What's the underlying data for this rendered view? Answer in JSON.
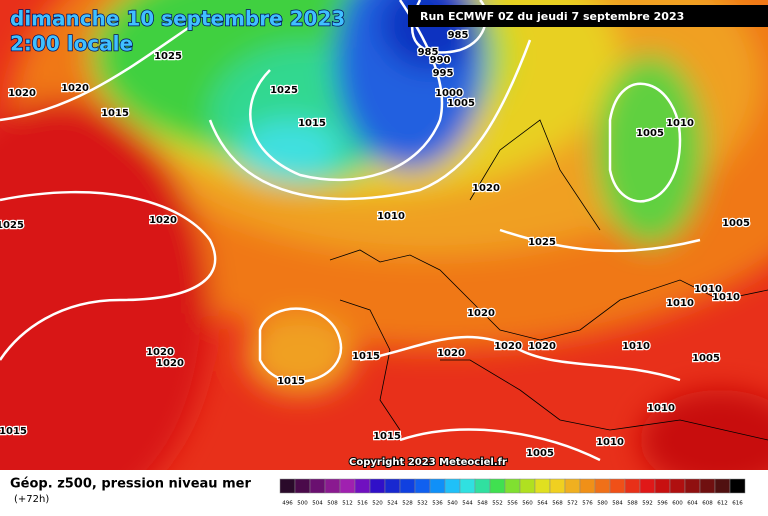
{
  "header": {
    "title": "dimanche 10 septembre 2023",
    "time": "2:00 locale",
    "run": "Run ECMWF 0Z du jeudi 7 septembre 2023"
  },
  "isobar_labels": [
    1025,
    1020,
    1020,
    1015,
    1025,
    1015,
    985,
    985,
    990,
    995,
    1000,
    1005,
    1010,
    1005,
    1020,
    1010,
    1020,
    1025,
    1025,
    1005,
    1010,
    1010,
    1010,
    1020,
    1020,
    1020,
    1010,
    1020,
    1015,
    1020,
    1020,
    1005,
    1015,
    1010,
    1015,
    1015,
    1010,
    1005
  ],
  "copyright": "Copyright 2023 Meteociel.fr",
  "legend": {
    "title": "Géop. z500, pression niveau mer",
    "lead": "(+72h)",
    "scale": [
      {
        "value": 496,
        "color": "#2a0a2a"
      },
      {
        "value": 500,
        "color": "#4a0a4a"
      },
      {
        "value": 504,
        "color": "#6a1070"
      },
      {
        "value": 508,
        "color": "#8a1a90"
      },
      {
        "value": 512,
        "color": "#a020b0"
      },
      {
        "value": 516,
        "color": "#7010c0"
      },
      {
        "value": 520,
        "color": "#3010c8"
      },
      {
        "value": 524,
        "color": "#1828d0"
      },
      {
        "value": 528,
        "color": "#1040e0"
      },
      {
        "value": 532,
        "color": "#1060f0"
      },
      {
        "value": 536,
        "color": "#1090f8"
      },
      {
        "value": 540,
        "color": "#20c0f8"
      },
      {
        "value": 544,
        "color": "#30e0e0"
      },
      {
        "value": 548,
        "color": "#30e0a0"
      },
      {
        "value": 552,
        "color": "#40e050"
      },
      {
        "value": 556,
        "color": "#80e030"
      },
      {
        "value": 560,
        "color": "#b0e020"
      },
      {
        "value": 564,
        "color": "#e0e020"
      },
      {
        "value": 568,
        "color": "#f0d020"
      },
      {
        "value": 572,
        "color": "#f0b020"
      },
      {
        "value": 576,
        "color": "#f09018"
      },
      {
        "value": 580,
        "color": "#f07018"
      },
      {
        "value": 584,
        "color": "#f05018"
      },
      {
        "value": 588,
        "color": "#e83018"
      },
      {
        "value": 592,
        "color": "#e01818"
      },
      {
        "value": 596,
        "color": "#c81010"
      },
      {
        "value": 600,
        "color": "#b01010"
      },
      {
        "value": 604,
        "color": "#901010"
      },
      {
        "value": 608,
        "color": "#701010"
      },
      {
        "value": 612,
        "color": "#501010"
      },
      {
        "value": 616,
        "color": "#000000"
      }
    ]
  }
}
